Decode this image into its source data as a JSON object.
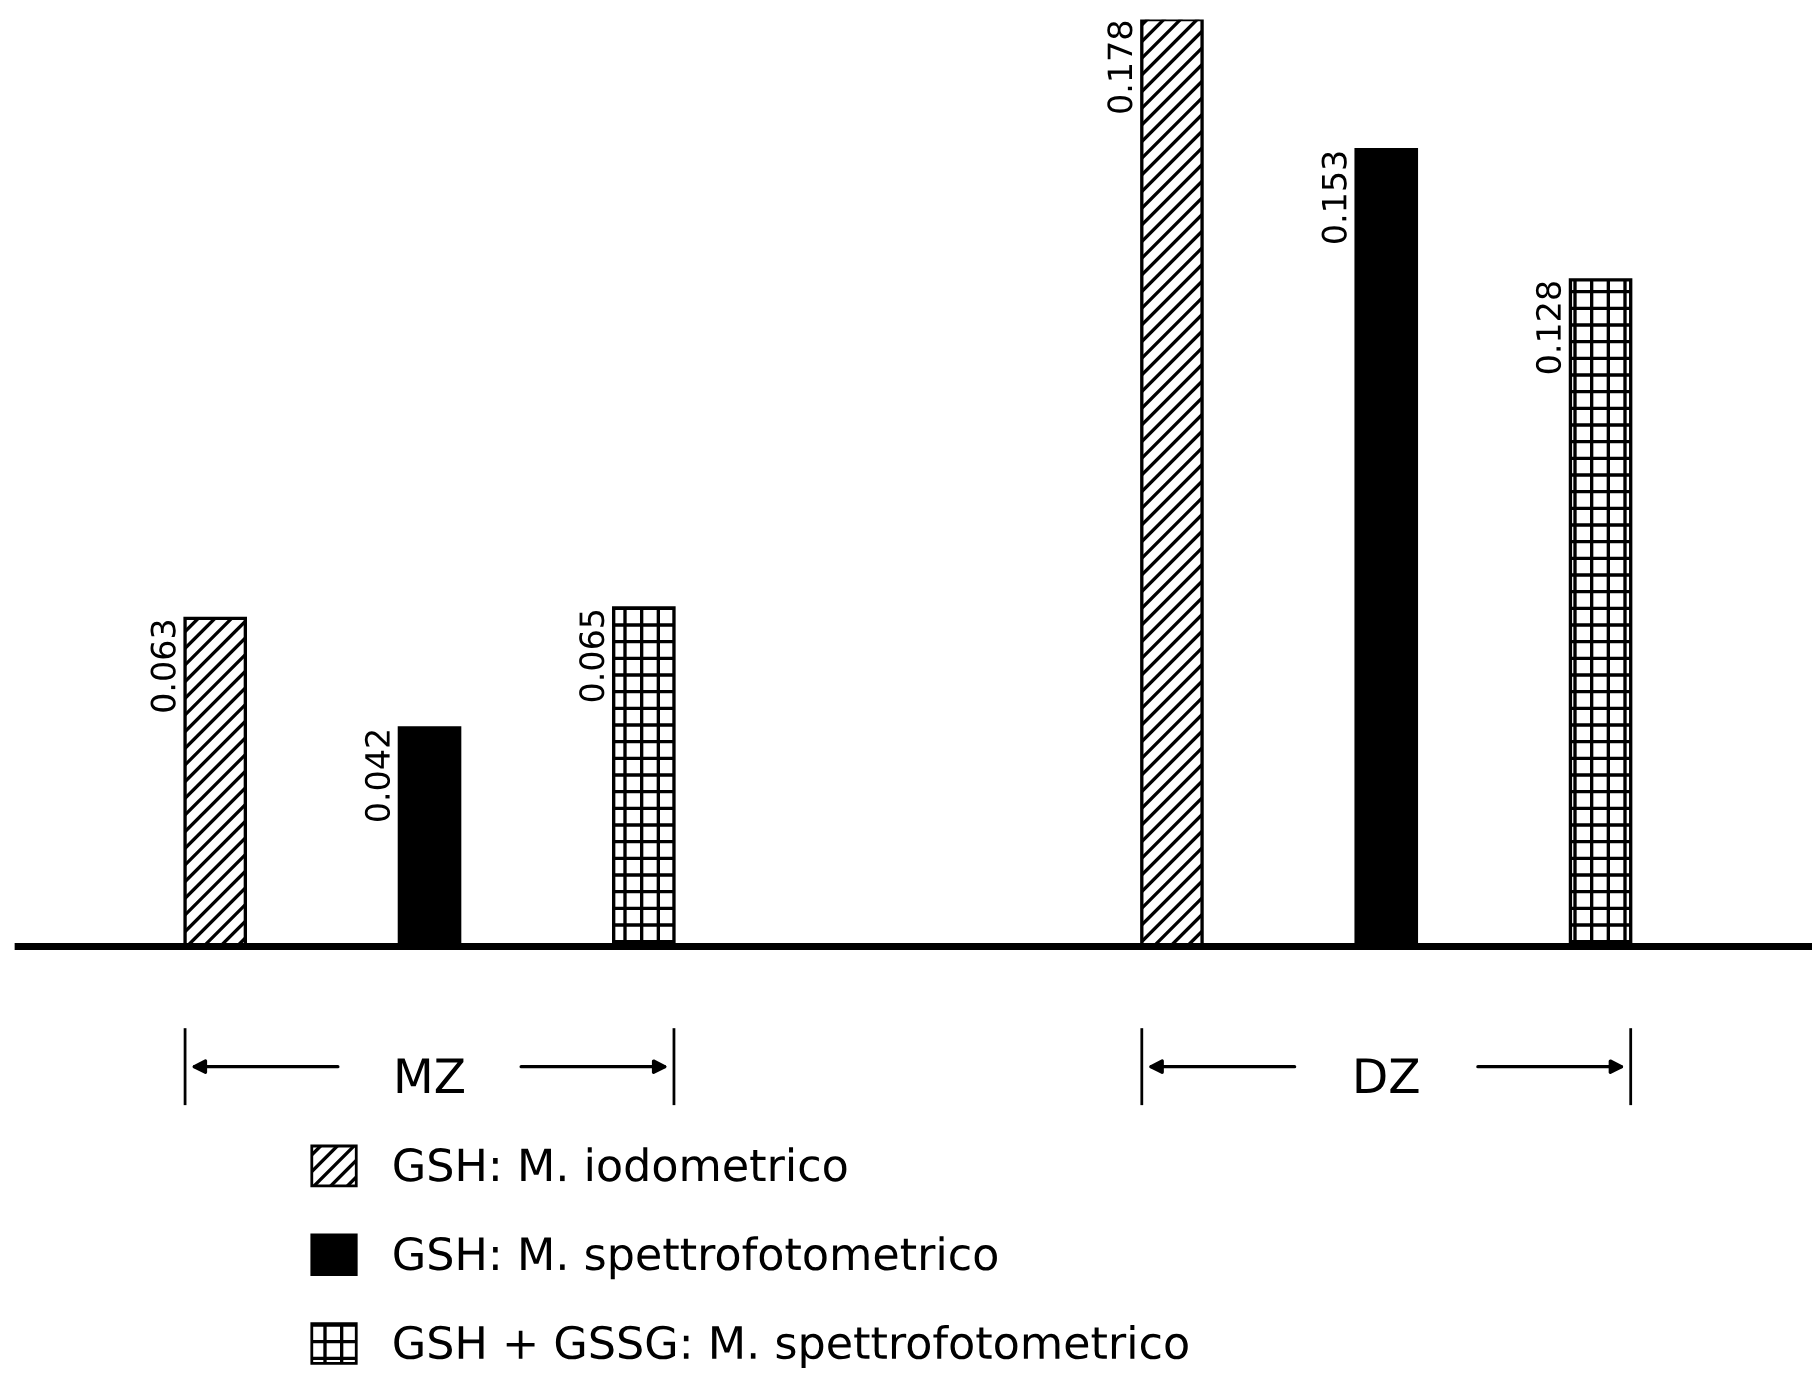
{
  "chart_data": {
    "type": "bar",
    "categories": [
      "MZ",
      "DZ"
    ],
    "series": [
      {
        "name": "GSH: M. iodometrico",
        "color": "#000000",
        "values": [
          0.063,
          0.178
        ]
      },
      {
        "name": "GSH: M. spettrofotometrico",
        "color": "#000000",
        "values": [
          0.042,
          0.153
        ]
      },
      {
        "name": "GSH + GSSG: M. spettrofotometrico",
        "color": "#000000",
        "values": [
          0.065,
          0.128
        ]
      }
    ],
    "data_labels": true,
    "legend": "bottom",
    "grid": false
  }
}
